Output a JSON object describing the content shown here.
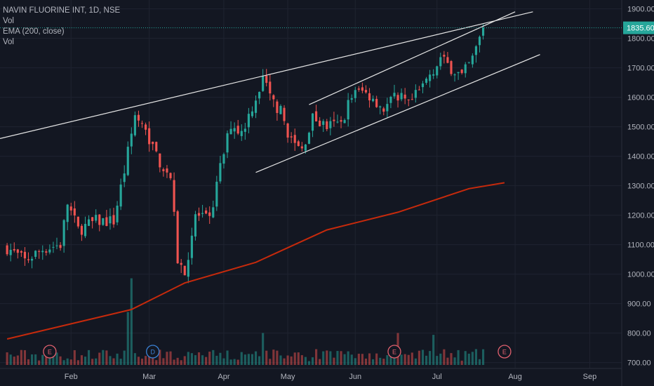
{
  "legend": {
    "symbol_line": "NAVIN FLUORINE INT, 1D, NSE",
    "vol_1": "Vol",
    "ema": "EMA (200, close)",
    "vol_2": "Vol"
  },
  "colors": {
    "background": "#131722",
    "grid": "#1f2330",
    "up": "#26a69a",
    "down": "#ef5350",
    "ema": "#c62a0c",
    "trendline": "#e6e6e6",
    "last_price": "#26a69a",
    "axis_text": "#b2b5be",
    "earnings_event": "#e0606e",
    "dividend_event": "#3b82d6"
  },
  "chart_data": {
    "type": "candlestick",
    "instrument": "NAVIN FLUORINE INT",
    "interval": "1D",
    "exchange": "NSE",
    "x_tick_labels": [
      "Feb",
      "Mar",
      "Apr",
      "May",
      "Jun",
      "Jul",
      "Aug",
      "Sep"
    ],
    "y_ticks": [
      700,
      800,
      900,
      1000,
      1100,
      1200,
      1300,
      1400,
      1500,
      1600,
      1700,
      1800,
      1900
    ],
    "y_tick_labels": [
      "700.00",
      "800.00",
      "900.00",
      "1000.00",
      "1100.00",
      "1200.00",
      "1300.00",
      "1400.00",
      "1500.00",
      "1600.00",
      "1700.00",
      "1800.00",
      "1900.00"
    ],
    "ylim": [
      680,
      1930
    ],
    "last_price": 1835.6,
    "last_price_label": "1835.60",
    "close_keypoints": [
      [
        0,
        1090
      ],
      [
        5,
        1045
      ],
      [
        10,
        1085
      ],
      [
        15,
        1100
      ],
      [
        17,
        1240
      ],
      [
        20,
        1150
      ],
      [
        25,
        1180
      ],
      [
        30,
        1180
      ],
      [
        33,
        1350
      ],
      [
        36,
        1540
      ],
      [
        40,
        1460
      ],
      [
        43,
        1380
      ],
      [
        46,
        1330
      ],
      [
        48,
        1050
      ],
      [
        50,
        1000
      ],
      [
        53,
        1200
      ],
      [
        57,
        1180
      ],
      [
        60,
        1360
      ],
      [
        63,
        1510
      ],
      [
        66,
        1480
      ],
      [
        69,
        1570
      ],
      [
        72,
        1660
      ],
      [
        74,
        1600
      ],
      [
        77,
        1550
      ],
      [
        80,
        1450
      ],
      [
        83,
        1420
      ],
      [
        86,
        1530
      ],
      [
        90,
        1500
      ],
      [
        94,
        1510
      ],
      [
        97,
        1610
      ],
      [
        100,
        1620
      ],
      [
        103,
        1600
      ],
      [
        106,
        1560
      ],
      [
        110,
        1610
      ],
      [
        113,
        1570
      ],
      [
        116,
        1620
      ],
      [
        119,
        1680
      ],
      [
        122,
        1730
      ],
      [
        125,
        1700
      ],
      [
        128,
        1670
      ],
      [
        131,
        1730
      ],
      [
        134,
        1835
      ]
    ],
    "ema_200": {
      "name": "EMA (200, close)",
      "points": [
        [
          0,
          780
        ],
        [
          35,
          880
        ],
        [
          50,
          970
        ],
        [
          70,
          1040
        ],
        [
          90,
          1150
        ],
        [
          110,
          1210
        ],
        [
          130,
          1290
        ],
        [
          140,
          1310
        ]
      ]
    },
    "volume": {
      "spikes": [
        [
          34,
          0.58
        ],
        [
          35,
          0.95
        ],
        [
          72,
          0.35
        ],
        [
          110,
          0.35
        ],
        [
          120,
          0.33
        ]
      ],
      "base": 0.12
    },
    "trendlines": [
      {
        "from": [
          -2,
          1460
        ],
        "to": [
          148,
          1890
        ]
      },
      {
        "from": [
          70,
          1345
        ],
        "to": [
          150,
          1745
        ]
      },
      {
        "from": [
          85,
          1575
        ],
        "to": [
          143,
          1890
        ]
      }
    ],
    "events": [
      {
        "label": "E",
        "kind": "earnings",
        "x": 12
      },
      {
        "label": "D",
        "kind": "dividend",
        "x": 41
      },
      {
        "label": "E",
        "kind": "earnings",
        "x": 109
      },
      {
        "label": "E",
        "kind": "earnings",
        "x": 140
      }
    ],
    "month_positions": {
      "Feb": 18,
      "Mar": 40,
      "Apr": 61,
      "May": 79,
      "Jun": 98,
      "Jul": 121,
      "Aug": 143,
      "Sep": 164
    },
    "n_bars": 135,
    "x_domain": [
      -2,
      173
    ]
  }
}
